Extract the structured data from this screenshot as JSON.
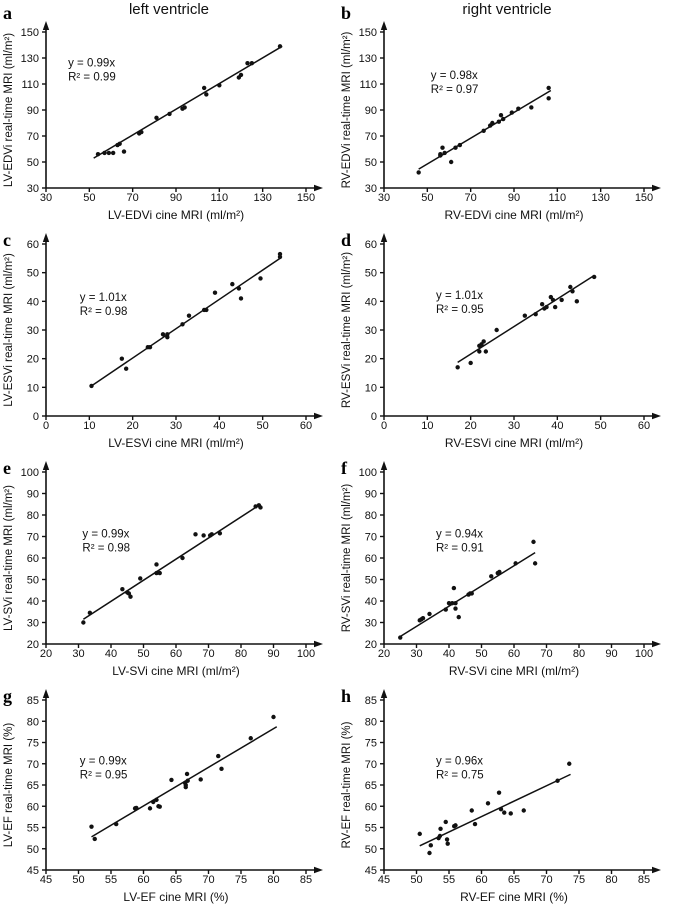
{
  "header": {
    "left_title": "left ventricle",
    "right_title": "right ventricle"
  },
  "colors": {
    "ink": "#111111",
    "background": "#ffffff"
  },
  "chart_data": [
    {
      "panel_letter": "a",
      "type": "scatter",
      "xlabel": "LV-EDVi cine MRI (ml/m²)",
      "ylabel": "LV-EDVi real-time MRI (ml/m²)",
      "equation": "y = 0.99x",
      "r_squared": "R² = 0.99",
      "xlim": [
        30,
        150
      ],
      "ylim": [
        30,
        150
      ],
      "xticks": [
        30,
        50,
        70,
        90,
        110,
        130,
        150
      ],
      "yticks": [
        30,
        50,
        70,
        90,
        110,
        130,
        150
      ],
      "points": [
        [
          54,
          56
        ],
        [
          57,
          57
        ],
        [
          59,
          57
        ],
        [
          61,
          57
        ],
        [
          63,
          63
        ],
        [
          64,
          64
        ],
        [
          66,
          58
        ],
        [
          73,
          72
        ],
        [
          74,
          73
        ],
        [
          81,
          84
        ],
        [
          87,
          87
        ],
        [
          93,
          91
        ],
        [
          94,
          92
        ],
        [
          103,
          107
        ],
        [
          104,
          102
        ],
        [
          110,
          109
        ],
        [
          119,
          115
        ],
        [
          120,
          117
        ],
        [
          123,
          126
        ],
        [
          125,
          126
        ],
        [
          138,
          139
        ]
      ],
      "fit_line": {
        "x1": 52,
        "y1": 53,
        "x2": 139,
        "y2": 139
      },
      "eq_pos": [
        0.085,
        0.22
      ]
    },
    {
      "panel_letter": "b",
      "type": "scatter",
      "xlabel": "RV-EDVi cine MRI (ml/m²)",
      "ylabel": "RV-EDVi real-time MRI (ml/m²)",
      "equation": "y = 0.98x",
      "r_squared": "R² = 0.97",
      "xlim": [
        30,
        150
      ],
      "ylim": [
        30,
        150
      ],
      "xticks": [
        30,
        50,
        70,
        90,
        110,
        130,
        150
      ],
      "yticks": [
        30,
        50,
        70,
        90,
        110,
        130,
        150
      ],
      "points": [
        [
          46,
          42
        ],
        [
          56,
          55
        ],
        [
          56,
          56
        ],
        [
          57,
          61
        ],
        [
          58,
          57
        ],
        [
          61,
          50
        ],
        [
          63,
          61
        ],
        [
          65,
          63
        ],
        [
          76,
          74
        ],
        [
          79,
          78
        ],
        [
          80,
          80
        ],
        [
          83,
          81
        ],
        [
          84,
          86
        ],
        [
          85,
          83
        ],
        [
          89,
          88
        ],
        [
          92,
          91
        ],
        [
          98,
          92
        ],
        [
          106,
          107
        ],
        [
          106,
          99
        ]
      ],
      "fit_line": {
        "x1": 46,
        "y1": 44.5,
        "x2": 107,
        "y2": 105
      },
      "eq_pos": [
        0.18,
        0.3
      ]
    },
    {
      "panel_letter": "c",
      "type": "scatter",
      "xlabel": "LV-ESVi cine MRI (ml/m²)",
      "ylabel": "LV-ESVi real-time MRI (ml/m²)",
      "equation": "y = 1.01x",
      "r_squared": "R² = 0.98",
      "xlim": [
        0,
        60
      ],
      "ylim": [
        0,
        60
      ],
      "xticks": [
        0,
        10,
        20,
        30,
        40,
        50,
        60
      ],
      "yticks": [
        0,
        10,
        20,
        30,
        40,
        50,
        60
      ],
      "points": [
        [
          10.5,
          10.5
        ],
        [
          17.5,
          20
        ],
        [
          18.5,
          16.5
        ],
        [
          23.5,
          24
        ],
        [
          24,
          24
        ],
        [
          27,
          28.5
        ],
        [
          28,
          28.5
        ],
        [
          28,
          27.5
        ],
        [
          31.5,
          32
        ],
        [
          33,
          35
        ],
        [
          36.5,
          37
        ],
        [
          37,
          37
        ],
        [
          39,
          43
        ],
        [
          43,
          46
        ],
        [
          44.5,
          44.5
        ],
        [
          45,
          41
        ],
        [
          49.5,
          48
        ],
        [
          54,
          55.5
        ],
        [
          54,
          56.5
        ]
      ],
      "fit_line": {
        "x1": 10.5,
        "y1": 10.5,
        "x2": 54,
        "y2": 55
      },
      "eq_pos": [
        0.13,
        0.33
      ]
    },
    {
      "panel_letter": "d",
      "type": "scatter",
      "xlabel": "RV-ESVi cine MRI (ml/m²)",
      "ylabel": "RV-ESVi real-time MRI (ml/m²)",
      "equation": "y = 1.01x",
      "r_squared": "R² = 0.95",
      "xlim": [
        0,
        60
      ],
      "ylim": [
        0,
        60
      ],
      "xticks": [
        0,
        10,
        20,
        30,
        40,
        50,
        60
      ],
      "yticks": [
        0,
        10,
        20,
        30,
        40,
        50,
        60
      ],
      "points": [
        [
          17,
          17
        ],
        [
          20,
          18.5
        ],
        [
          22,
          22.5
        ],
        [
          22,
          24.5
        ],
        [
          22.5,
          25
        ],
        [
          23,
          26
        ],
        [
          23.5,
          22.5
        ],
        [
          26,
          30
        ],
        [
          32.5,
          35
        ],
        [
          35,
          35.5
        ],
        [
          36.5,
          39
        ],
        [
          37,
          37.5
        ],
        [
          37.5,
          38
        ],
        [
          38.5,
          41.5
        ],
        [
          39,
          40.5
        ],
        [
          39.5,
          38
        ],
        [
          41,
          40.5
        ],
        [
          43,
          45
        ],
        [
          43.5,
          43.5
        ],
        [
          44.5,
          40
        ],
        [
          48.5,
          48.5
        ]
      ],
      "fit_line": {
        "x1": 17,
        "y1": 18.7,
        "x2": 48.5,
        "y2": 49
      },
      "eq_pos": [
        0.2,
        0.32
      ]
    },
    {
      "panel_letter": "e",
      "type": "scatter",
      "xlabel": "LV-SVi cine MRI (ml/m²)",
      "ylabel": "LV-SVi real-time MRI (ml/m²)",
      "equation": "y = 0.99x",
      "r_squared": "R² = 0.98",
      "xlim": [
        20,
        100
      ],
      "ylim": [
        20,
        100
      ],
      "xticks": [
        20,
        30,
        40,
        50,
        60,
        70,
        80,
        90,
        100
      ],
      "yticks": [
        20,
        30,
        40,
        50,
        60,
        70,
        80,
        90,
        100
      ],
      "points": [
        [
          31.5,
          30
        ],
        [
          33.5,
          34.5
        ],
        [
          43.5,
          45.5
        ],
        [
          45,
          44
        ],
        [
          45.5,
          43.5
        ],
        [
          46,
          42
        ],
        [
          49,
          50.5
        ],
        [
          54,
          57
        ],
        [
          54,
          53
        ],
        [
          55,
          53
        ],
        [
          62,
          60
        ],
        [
          66,
          71
        ],
        [
          68.5,
          70.5
        ],
        [
          70.5,
          70.5
        ],
        [
          71,
          71
        ],
        [
          73.5,
          71.5
        ],
        [
          84.5,
          84
        ],
        [
          85.5,
          84.5
        ],
        [
          86,
          83.5
        ]
      ],
      "fit_line": {
        "x1": 31.5,
        "y1": 31.5,
        "x2": 86,
        "y2": 85
      },
      "eq_pos": [
        0.14,
        0.38
      ]
    },
    {
      "panel_letter": "f",
      "type": "scatter",
      "xlabel": "RV-SVi cine MRI (ml/m²)",
      "ylabel": "RV-SVi real-time MRI (ml/m²)",
      "equation": "y = 0.94x",
      "r_squared": "R² = 0.91",
      "xlim": [
        20,
        100
      ],
      "ylim": [
        20,
        100
      ],
      "xticks": [
        20,
        30,
        40,
        50,
        60,
        70,
        80,
        90,
        100
      ],
      "yticks": [
        20,
        30,
        40,
        50,
        60,
        70,
        80,
        90,
        100
      ],
      "points": [
        [
          25,
          23
        ],
        [
          31,
          31
        ],
        [
          31.5,
          31.5
        ],
        [
          32,
          32
        ],
        [
          34,
          34
        ],
        [
          39,
          36
        ],
        [
          40,
          39
        ],
        [
          41,
          39
        ],
        [
          41.5,
          46
        ],
        [
          42,
          39
        ],
        [
          42,
          36.5
        ],
        [
          43,
          32.5
        ],
        [
          46,
          43
        ],
        [
          46.5,
          43.5
        ],
        [
          47,
          43.5
        ],
        [
          53,
          51.5
        ],
        [
          55,
          53
        ],
        [
          55.5,
          53.5
        ],
        [
          60.5,
          57.5
        ],
        [
          66,
          67.5
        ],
        [
          66.5,
          57.5
        ]
      ],
      "fit_line": {
        "x1": 25,
        "y1": 23.5,
        "x2": 66.5,
        "y2": 62.5
      },
      "eq_pos": [
        0.2,
        0.38
      ]
    },
    {
      "panel_letter": "g",
      "type": "scatter",
      "xlabel": "LV-EF cine MRI (%)",
      "ylabel": "LV-EF real-time MRI (%)",
      "equation": "y = 0.99x",
      "r_squared": "R² = 0.95",
      "xlim": [
        45,
        85
      ],
      "ylim": [
        45,
        85
      ],
      "xticks": [
        45,
        50,
        55,
        60,
        65,
        70,
        75,
        80,
        85
      ],
      "yticks": [
        45,
        50,
        55,
        60,
        65,
        70,
        75,
        80,
        85
      ],
      "points": [
        [
          52,
          55.2
        ],
        [
          52.5,
          52.3
        ],
        [
          55.8,
          55.8
        ],
        [
          58.7,
          59.5
        ],
        [
          58.9,
          59.6
        ],
        [
          61,
          59.5
        ],
        [
          61.5,
          61
        ],
        [
          62,
          61.5
        ],
        [
          62.3,
          60
        ],
        [
          62.5,
          59.9
        ],
        [
          64.3,
          66.2
        ],
        [
          66.4,
          65.5
        ],
        [
          66.5,
          65
        ],
        [
          66.5,
          64.5
        ],
        [
          66.7,
          67.6
        ],
        [
          66.8,
          66
        ],
        [
          68.8,
          66.3
        ],
        [
          71.5,
          71.8
        ],
        [
          72,
          68.8
        ],
        [
          76.5,
          76
        ],
        [
          80,
          81
        ]
      ],
      "fit_line": {
        "x1": 52,
        "y1": 52.8,
        "x2": 80.5,
        "y2": 78.7
      },
      "eq_pos": [
        0.13,
        0.38
      ]
    },
    {
      "panel_letter": "h",
      "type": "scatter",
      "xlabel": "RV-EF cine MRI (%)",
      "ylabel": "RV-EF real-time MRI (%)",
      "equation": "y = 0.96x",
      "r_squared": "R² = 0.75",
      "xlim": [
        45,
        85
      ],
      "ylim": [
        45,
        85
      ],
      "xticks": [
        45,
        50,
        55,
        60,
        65,
        70,
        75,
        80,
        85
      ],
      "yticks": [
        45,
        50,
        55,
        60,
        65,
        70,
        75,
        80,
        85
      ],
      "points": [
        [
          50.5,
          53.5
        ],
        [
          52,
          49
        ],
        [
          52.2,
          50.8
        ],
        [
          53.4,
          52.5
        ],
        [
          53.6,
          53
        ],
        [
          53.7,
          54.7
        ],
        [
          54.5,
          56.3
        ],
        [
          54.7,
          52.2
        ],
        [
          54.8,
          51.2
        ],
        [
          55.8,
          55.3
        ],
        [
          56,
          55.5
        ],
        [
          58.5,
          59
        ],
        [
          59,
          55.8
        ],
        [
          61,
          60.7
        ],
        [
          62.7,
          63.2
        ],
        [
          63,
          59.3
        ],
        [
          63.5,
          58.5
        ],
        [
          64.5,
          58.3
        ],
        [
          66.5,
          59
        ],
        [
          71.7,
          66
        ],
        [
          73.5,
          70
        ]
      ],
      "fit_line": {
        "x1": 50.5,
        "y1": 50.7,
        "x2": 73.7,
        "y2": 67.5
      },
      "eq_pos": [
        0.2,
        0.38
      ]
    }
  ]
}
